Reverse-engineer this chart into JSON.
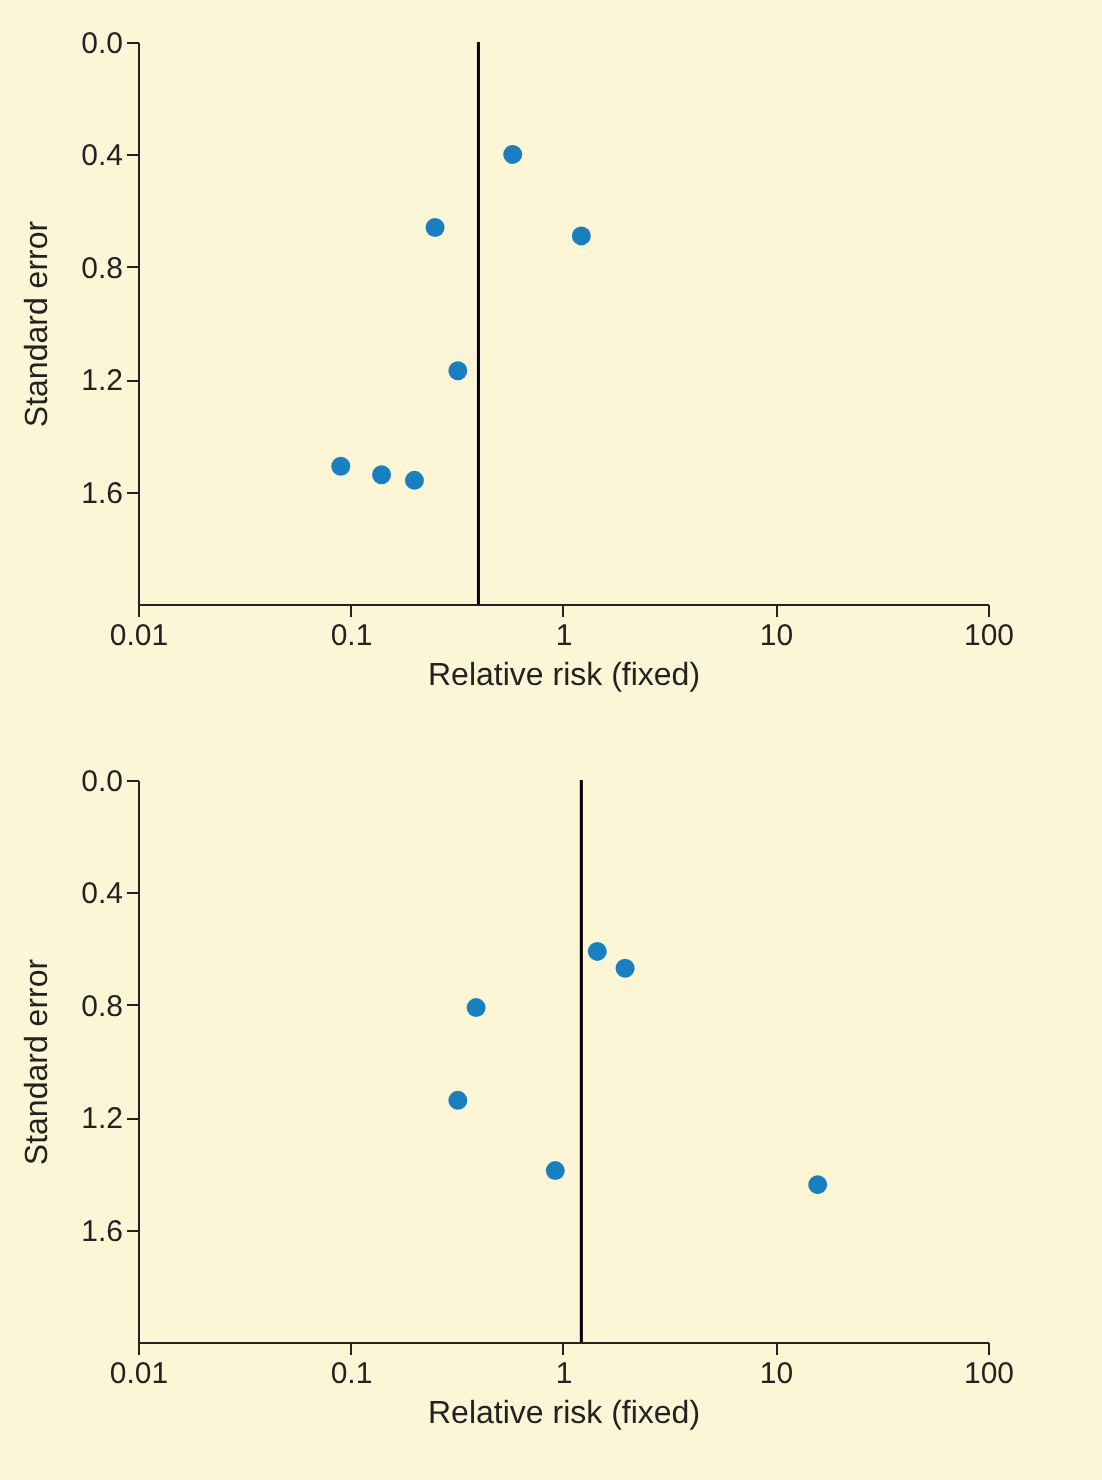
{
  "chart_data": [
    {
      "type": "scatter",
      "xlabel": "Relative risk (fixed)",
      "ylabel": "Standard error",
      "log": "x",
      "marker": "circle",
      "grid": false,
      "legend": false,
      "xlim": [
        0.01,
        100
      ],
      "xticks": [
        0.01,
        0.1,
        1,
        10,
        100
      ],
      "ylim": [
        2.0,
        0.0
      ],
      "yticks": [
        {
          "value": 0,
          "label": "0.0"
        },
        0.4,
        0.8,
        1.2,
        1.6
      ],
      "x": [
        0.58,
        0.25,
        1.22,
        0.32,
        0.09,
        0.14,
        0.2
      ],
      "series": [
        {
          "color": "#1a7fc0",
          "values": [
            0.4,
            0.66,
            0.69,
            1.17,
            1.51,
            1.54,
            1.56
          ]
        }
      ],
      "ref_lines": [
        {
          "axis": "x",
          "value": 0.4,
          "color": "#000000"
        }
      ]
    },
    {
      "type": "scatter",
      "xlabel": "Relative risk (fixed)",
      "ylabel": "Standard error",
      "log": "x",
      "marker": "circle",
      "grid": false,
      "legend": false,
      "xlim": [
        0.01,
        100
      ],
      "xticks": [
        0.01,
        0.1,
        1,
        10,
        100
      ],
      "ylim": [
        2.0,
        0.0
      ],
      "yticks": [
        {
          "value": 0,
          "label": "0.0"
        },
        0.4,
        0.8,
        1.2,
        1.6
      ],
      "x": [
        1.45,
        1.96,
        0.39,
        0.32,
        0.92,
        15.8
      ],
      "series": [
        {
          "color": "#1a7fc0",
          "values": [
            0.61,
            0.67,
            0.81,
            1.14,
            1.39,
            1.44
          ]
        }
      ],
      "ref_lines": [
        {
          "axis": "x",
          "value": 1.22,
          "color": "#000000"
        }
      ]
    }
  ]
}
